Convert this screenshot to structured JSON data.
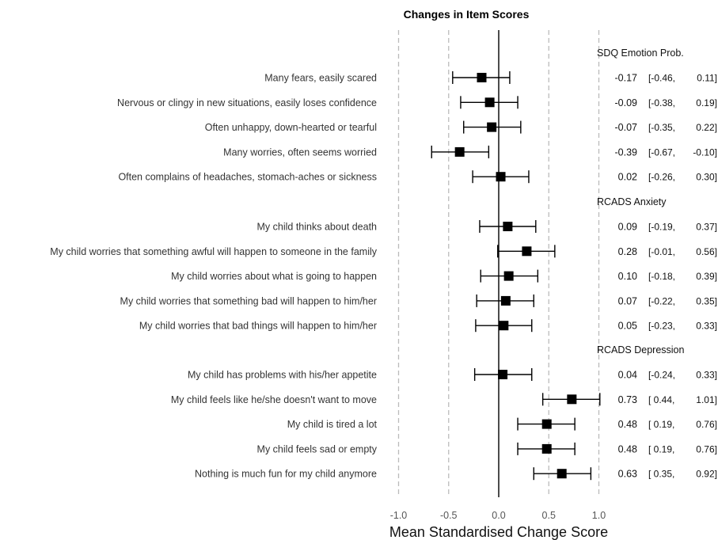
{
  "chart_data": {
    "type": "forest",
    "title": "Changes in Item Scores",
    "xlabel": "Mean Standardised Change Score",
    "xlim": [
      -1.0,
      1.0
    ],
    "xticks": [
      "-1.0",
      "-0.5",
      "0.0",
      "0.5",
      "1.0"
    ],
    "xtick_values": [
      -1.0,
      -0.5,
      0.0,
      0.5,
      1.0
    ],
    "reference_line": 0.0,
    "dashed_lines": [
      -1.0,
      -0.5,
      0.5,
      1.0
    ],
    "groups": [
      {
        "name": "SDQ Emotion Prob.",
        "items": [
          {
            "label": "Many fears, easily scared",
            "estimate": -0.17,
            "lower": -0.46,
            "upper": 0.11,
            "est_text": "-0.17",
            "lower_text": "[-0.46,",
            "upper_text": "0.11]"
          },
          {
            "label": "Nervous or clingy in new situations, easily loses confidence",
            "estimate": -0.09,
            "lower": -0.38,
            "upper": 0.19,
            "est_text": "-0.09",
            "lower_text": "[-0.38,",
            "upper_text": "0.19]"
          },
          {
            "label": "Often unhappy, down-hearted or tearful",
            "estimate": -0.07,
            "lower": -0.35,
            "upper": 0.22,
            "est_text": "-0.07",
            "lower_text": "[-0.35,",
            "upper_text": "0.22]"
          },
          {
            "label": "Many worries, often seems worried",
            "estimate": -0.39,
            "lower": -0.67,
            "upper": -0.1,
            "est_text": "-0.39",
            "lower_text": "[-0.67,",
            "upper_text": "-0.10]"
          },
          {
            "label": "Often complains of headaches, stomach-aches or sickness",
            "estimate": 0.02,
            "lower": -0.26,
            "upper": 0.3,
            "est_text": "0.02",
            "lower_text": "[-0.26,",
            "upper_text": "0.30]"
          }
        ]
      },
      {
        "name": "RCADS Anxiety",
        "items": [
          {
            "label": "My child thinks about death",
            "estimate": 0.09,
            "lower": -0.19,
            "upper": 0.37,
            "est_text": "0.09",
            "lower_text": "[-0.19,",
            "upper_text": "0.37]"
          },
          {
            "label": "My child worries that something awful will happen to someone in the family",
            "estimate": 0.28,
            "lower": -0.01,
            "upper": 0.56,
            "est_text": "0.28",
            "lower_text": "[-0.01,",
            "upper_text": "0.56]"
          },
          {
            "label": "My child worries about what is going to happen",
            "estimate": 0.1,
            "lower": -0.18,
            "upper": 0.39,
            "est_text": "0.10",
            "lower_text": "[-0.18,",
            "upper_text": "0.39]"
          },
          {
            "label": "My child worries that something bad will happen to him/her",
            "estimate": 0.07,
            "lower": -0.22,
            "upper": 0.35,
            "est_text": "0.07",
            "lower_text": "[-0.22,",
            "upper_text": "0.35]"
          },
          {
            "label": "My child worries that bad things will happen to him/her",
            "estimate": 0.05,
            "lower": -0.23,
            "upper": 0.33,
            "est_text": "0.05",
            "lower_text": "[-0.23,",
            "upper_text": "0.33]"
          }
        ]
      },
      {
        "name": "RCADS Depression",
        "items": [
          {
            "label": "My child has problems with his/her appetite",
            "estimate": 0.04,
            "lower": -0.24,
            "upper": 0.33,
            "est_text": "0.04",
            "lower_text": "[-0.24,",
            "upper_text": "0.33]"
          },
          {
            "label": "My child feels like he/she doesn't want to move",
            "estimate": 0.73,
            "lower": 0.44,
            "upper": 1.01,
            "est_text": "0.73",
            "lower_text": "[ 0.44,",
            "upper_text": "1.01]"
          },
          {
            "label": "My child is tired a lot",
            "estimate": 0.48,
            "lower": 0.19,
            "upper": 0.76,
            "est_text": "0.48",
            "lower_text": "[ 0.19,",
            "upper_text": "0.76]"
          },
          {
            "label": "My child feels sad or empty",
            "estimate": 0.48,
            "lower": 0.19,
            "upper": 0.76,
            "est_text": "0.48",
            "lower_text": "[ 0.19,",
            "upper_text": "0.76]"
          },
          {
            "label": "Nothing is much fun for my child anymore",
            "estimate": 0.63,
            "lower": 0.35,
            "upper": 0.92,
            "est_text": "0.63",
            "lower_text": "[ 0.35,",
            "upper_text": "0.92]"
          }
        ]
      }
    ],
    "colors": {
      "marker": "#000000",
      "ci_line": "#000000",
      "reference": "#000000",
      "dashed": "#bbbbbb"
    }
  }
}
